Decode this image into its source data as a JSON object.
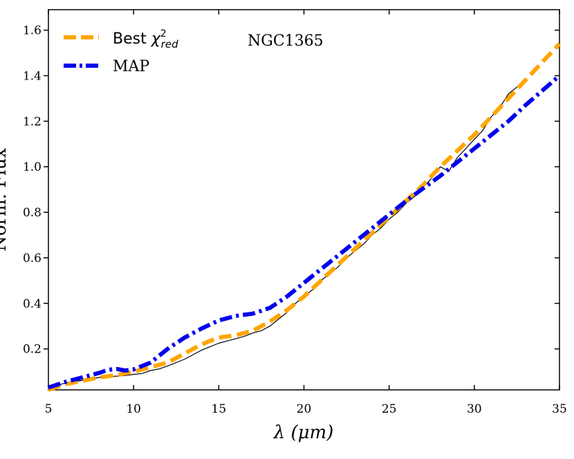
{
  "chart_data": {
    "type": "line",
    "annotation": "NGC1365",
    "xlabel": "λ (μm)",
    "ylabel": "Norm. Flux",
    "xlim": [
      5,
      35
    ],
    "ylim": [
      0.02,
      1.69
    ],
    "xticks": [
      5,
      10,
      15,
      20,
      25,
      30,
      35
    ],
    "yticks": [
      0.2,
      0.4,
      0.6,
      0.8,
      1.0,
      1.2,
      1.4,
      1.6
    ],
    "legend_position": "upper-left",
    "colors": {
      "observed": "#000000",
      "best": "#FFA500",
      "map": "#0000EE"
    },
    "legend": [
      {
        "key": "best",
        "label_prefix": "Best ",
        "label_symbol": "χ",
        "label_sup": "2",
        "label_sub": "red"
      },
      {
        "key": "map",
        "label": "MAP"
      }
    ],
    "series": [
      {
        "key": "observed",
        "x": [
          5,
          5.5,
          6,
          6.5,
          7,
          7.5,
          8,
          8.5,
          9,
          9.5,
          10,
          10.5,
          11,
          11.5,
          12,
          12.5,
          13,
          13.5,
          14,
          14.5,
          15,
          15.5,
          16,
          16.5,
          17,
          17.5,
          18,
          18.5,
          19,
          19.5,
          20,
          20.5,
          21,
          21.5,
          22,
          22.5,
          23,
          23.5,
          24,
          24.5,
          25,
          25.5,
          26,
          26.5,
          27,
          27.5,
          28,
          28.5,
          29,
          29.5,
          30,
          30.5,
          31,
          31.5,
          32,
          32.5,
          33
        ],
        "y": [
          0.035,
          0.04,
          0.05,
          0.055,
          0.062,
          0.068,
          0.075,
          0.078,
          0.08,
          0.083,
          0.088,
          0.092,
          0.105,
          0.112,
          0.125,
          0.14,
          0.155,
          0.175,
          0.195,
          0.21,
          0.225,
          0.235,
          0.245,
          0.255,
          0.27,
          0.28,
          0.3,
          0.33,
          0.36,
          0.4,
          0.43,
          0.46,
          0.5,
          0.53,
          0.56,
          0.6,
          0.63,
          0.66,
          0.7,
          0.73,
          0.77,
          0.8,
          0.84,
          0.87,
          0.91,
          0.95,
          1.0,
          0.98,
          1.04,
          1.08,
          1.12,
          1.16,
          1.22,
          1.26,
          1.32,
          1.35,
          1.39
        ]
      },
      {
        "key": "best",
        "x": [
          5,
          6,
          7,
          8,
          9,
          10,
          11,
          12,
          13,
          14,
          15,
          16,
          17,
          18,
          19,
          20,
          21,
          22,
          23,
          24,
          25,
          26,
          27,
          28,
          29,
          30,
          31,
          32,
          33,
          34,
          35
        ],
        "y": [
          0.02,
          0.045,
          0.06,
          0.075,
          0.085,
          0.1,
          0.12,
          0.14,
          0.18,
          0.22,
          0.25,
          0.26,
          0.28,
          0.32,
          0.37,
          0.43,
          0.5,
          0.57,
          0.64,
          0.71,
          0.78,
          0.85,
          0.92,
          1.0,
          1.07,
          1.14,
          1.22,
          1.3,
          1.38,
          1.46,
          1.54
        ]
      },
      {
        "key": "map",
        "x": [
          5,
          6,
          7,
          8,
          8.5,
          9,
          9.5,
          10,
          11,
          12,
          13,
          14,
          15,
          16,
          17,
          18,
          19,
          20,
          21,
          22,
          23,
          24,
          25,
          26,
          27,
          28,
          29,
          30,
          31,
          32,
          33,
          34,
          35
        ],
        "y": [
          0.03,
          0.055,
          0.075,
          0.095,
          0.108,
          0.112,
          0.105,
          0.11,
          0.14,
          0.2,
          0.25,
          0.29,
          0.325,
          0.345,
          0.355,
          0.38,
          0.43,
          0.49,
          0.55,
          0.61,
          0.67,
          0.73,
          0.79,
          0.85,
          0.905,
          0.96,
          1.02,
          1.08,
          1.14,
          1.2,
          1.27,
          1.335,
          1.4
        ]
      }
    ]
  }
}
